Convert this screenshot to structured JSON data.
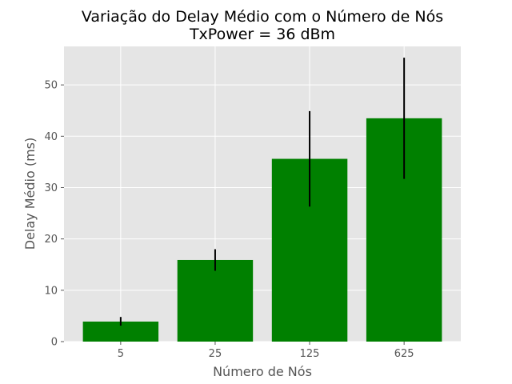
{
  "chart_data": {
    "type": "bar",
    "title": "Variação do Delay Médio com o Número de Nós",
    "subtitle": "TxPower = 36 dBm",
    "xlabel": "Número de Nós",
    "ylabel": "Delay Médio (ms)",
    "categories": [
      "5",
      "25",
      "125",
      "625"
    ],
    "values": [
      3.9,
      15.9,
      35.6,
      43.5
    ],
    "error_low": [
      3.1,
      13.8,
      26.3,
      31.7
    ],
    "error_high": [
      4.8,
      18.0,
      44.9,
      55.3
    ],
    "ylim": [
      0,
      57.5
    ],
    "yticks": [
      0,
      10,
      20,
      30,
      40,
      50
    ],
    "grid": true,
    "colors": {
      "bar": "#008000",
      "error_bar": "#000000",
      "plot_background": "#e5e5e5",
      "grid": "#ffffff",
      "tick_text": "#555555",
      "title_text": "#000000"
    }
  }
}
